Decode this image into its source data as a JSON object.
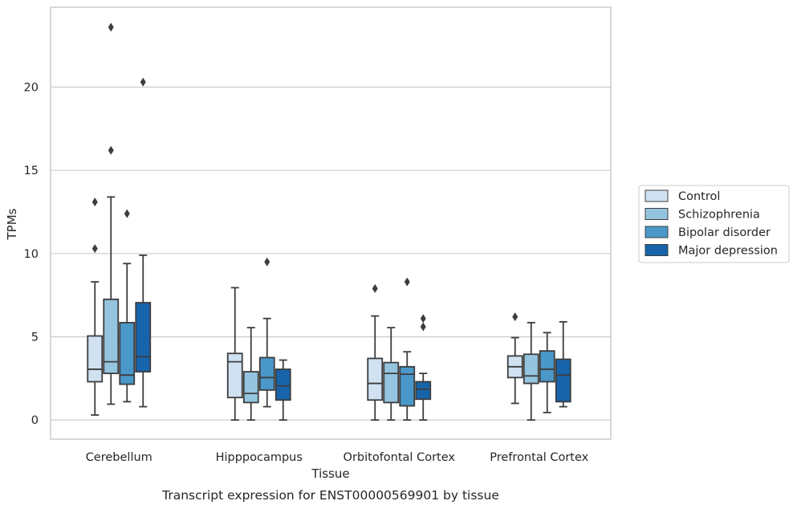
{
  "chart_data": {
    "type": "boxplot",
    "title": "",
    "caption": "Transcript expression for ENST00000569901 by tissue",
    "xlabel": "Tissue",
    "ylabel": "TPMs",
    "ylim": [
      -1.15,
      24.8
    ],
    "yticks": [
      0,
      5,
      10,
      15,
      20
    ],
    "grid": "horizontal",
    "legend_position": "right",
    "categories": [
      "Cerebellum",
      "Hipppocampus",
      "Orbitofontal Cortex",
      "Prefrontal Cortex"
    ],
    "series": [
      {
        "name": "Control",
        "color": "#d0e1f2",
        "boxes": [
          {
            "whislo": 0.3,
            "q1": 2.3,
            "med": 3.05,
            "q3": 5.05,
            "whishi": 8.3,
            "fliers": [
              10.3,
              13.1
            ]
          },
          {
            "whislo": 0.0,
            "q1": 1.35,
            "med": 3.5,
            "q3": 4.0,
            "whishi": 7.95,
            "fliers": []
          },
          {
            "whislo": 0.0,
            "q1": 1.2,
            "med": 2.2,
            "q3": 3.7,
            "whishi": 6.25,
            "fliers": [
              7.9
            ]
          },
          {
            "whislo": 1.0,
            "q1": 2.55,
            "med": 3.2,
            "q3": 3.85,
            "whishi": 4.95,
            "fliers": [
              6.2
            ]
          }
        ]
      },
      {
        "name": "Schizophrenia",
        "color": "#94c4df",
        "boxes": [
          {
            "whislo": 0.95,
            "q1": 2.8,
            "med": 3.5,
            "q3": 7.25,
            "whishi": 13.4,
            "fliers": [
              16.2,
              23.6
            ]
          },
          {
            "whislo": 0.0,
            "q1": 1.05,
            "med": 1.6,
            "q3": 2.9,
            "whishi": 5.55,
            "fliers": []
          },
          {
            "whislo": 0.0,
            "q1": 1.05,
            "med": 2.8,
            "q3": 3.45,
            "whishi": 5.55,
            "fliers": []
          },
          {
            "whislo": 0.0,
            "q1": 2.2,
            "med": 2.65,
            "q3": 3.95,
            "whishi": 5.85,
            "fliers": []
          }
        ]
      },
      {
        "name": "Bipolar disorder",
        "color": "#4a98c9",
        "boxes": [
          {
            "whislo": 1.1,
            "q1": 2.15,
            "med": 2.7,
            "q3": 5.85,
            "whishi": 9.4,
            "fliers": [
              12.4
            ]
          },
          {
            "whislo": 0.8,
            "q1": 1.8,
            "med": 2.55,
            "q3": 3.75,
            "whishi": 6.1,
            "fliers": [
              9.5
            ]
          },
          {
            "whislo": 0.0,
            "q1": 0.85,
            "med": 2.75,
            "q3": 3.2,
            "whishi": 4.1,
            "fliers": [
              8.3
            ]
          },
          {
            "whislo": 0.45,
            "q1": 2.3,
            "med": 3.05,
            "q3": 4.15,
            "whishi": 5.25,
            "fliers": []
          }
        ]
      },
      {
        "name": "Major depression",
        "color": "#1764ab",
        "boxes": [
          {
            "whislo": 0.8,
            "q1": 2.9,
            "med": 3.8,
            "q3": 7.05,
            "whishi": 9.9,
            "fliers": [
              20.3
            ]
          },
          {
            "whislo": 0.0,
            "q1": 1.2,
            "med": 2.05,
            "q3": 3.05,
            "whishi": 3.6,
            "fliers": []
          },
          {
            "whislo": 0.0,
            "q1": 1.25,
            "med": 1.85,
            "q3": 2.3,
            "whishi": 2.8,
            "fliers": [
              5.6,
              6.1
            ]
          },
          {
            "whislo": 0.8,
            "q1": 1.1,
            "med": 2.7,
            "q3": 3.65,
            "whishi": 5.9,
            "fliers": []
          }
        ]
      }
    ]
  }
}
